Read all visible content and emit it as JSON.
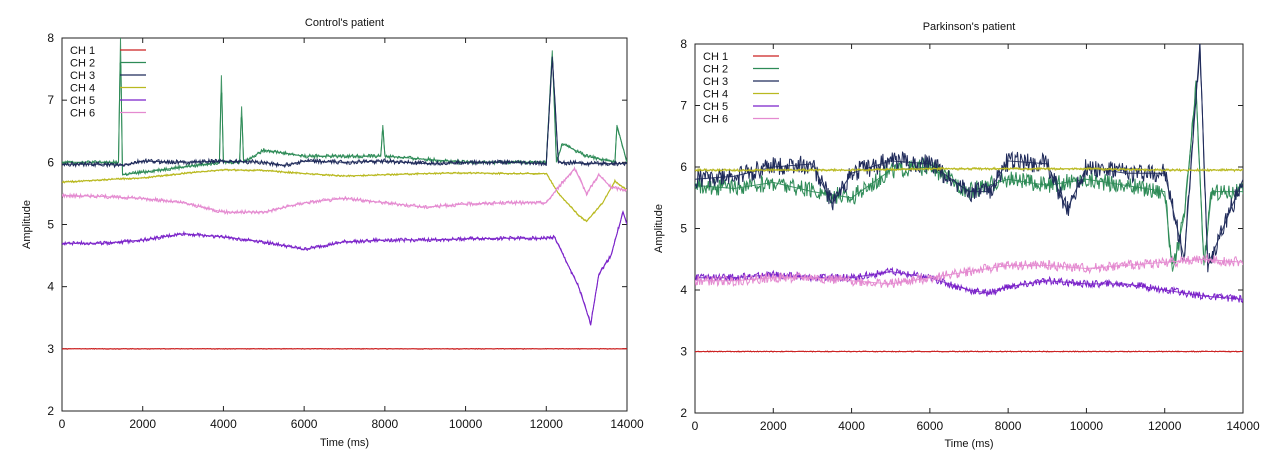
{
  "chart_data": [
    {
      "type": "line",
      "title": "Control's patient",
      "xlabel": "Time (ms)",
      "ylabel": "Amplitude",
      "xlim": [
        0,
        14000
      ],
      "ylim": [
        2,
        8
      ],
      "xticks": [
        0,
        2000,
        4000,
        6000,
        8000,
        10000,
        12000,
        14000
      ],
      "yticks": [
        2,
        3,
        4,
        5,
        6,
        7,
        8
      ],
      "grid": false,
      "legend": "top-left",
      "series": [
        {
          "name": "CH 1",
          "color": "#cc2222",
          "x": [
            0,
            2000,
            4000,
            6000,
            8000,
            10000,
            12000,
            14000
          ],
          "y": [
            3.0,
            3.0,
            3.0,
            3.0,
            3.0,
            3.0,
            3.0,
            3.0
          ]
        },
        {
          "name": "CH 2",
          "color": "#2e8b57",
          "x": [
            0,
            1400,
            1450,
            1500,
            3900,
            3950,
            4000,
            4400,
            4450,
            4500,
            5000,
            6000,
            7900,
            7950,
            8000,
            10000,
            12000,
            12150,
            12250,
            12400,
            13000,
            13700,
            13750,
            14000
          ],
          "y": [
            6.0,
            6.0,
            8.0,
            5.8,
            6.0,
            7.4,
            6.0,
            6.0,
            6.9,
            6.0,
            6.2,
            6.1,
            6.1,
            6.6,
            6.1,
            6.0,
            6.0,
            7.8,
            6.0,
            6.3,
            6.1,
            6.0,
            6.6,
            6.0
          ]
        },
        {
          "name": "CH 3",
          "color": "#1f2a5a",
          "x": [
            0,
            1000,
            1500,
            2000,
            3000,
            4000,
            5000,
            5500,
            6000,
            7000,
            8000,
            9000,
            10000,
            11000,
            12000,
            12150,
            12300,
            13000,
            14000
          ],
          "y": [
            5.97,
            5.97,
            5.95,
            6.02,
            6.0,
            6.02,
            6.0,
            5.95,
            6.02,
            6.0,
            6.02,
            5.98,
            6.0,
            6.0,
            5.98,
            7.7,
            6.0,
            5.98,
            5.98
          ]
        },
        {
          "name": "CH 4",
          "color": "#b9b920",
          "x": [
            0,
            1000,
            2000,
            3000,
            4000,
            5000,
            6000,
            7000,
            8000,
            9000,
            10000,
            11000,
            12000,
            12300,
            12800,
            13000,
            13400,
            13700,
            14000
          ],
          "y": [
            5.68,
            5.72,
            5.75,
            5.82,
            5.88,
            5.87,
            5.82,
            5.78,
            5.8,
            5.82,
            5.83,
            5.82,
            5.82,
            5.5,
            5.15,
            5.05,
            5.35,
            5.7,
            5.55
          ]
        },
        {
          "name": "CH 5",
          "color": "#7a22c9",
          "x": [
            0,
            1000,
            2000,
            3000,
            4000,
            5000,
            6000,
            7000,
            8000,
            9000,
            10000,
            11000,
            12000,
            12200,
            12500,
            12800,
            13100,
            13300,
            13600,
            13900,
            14000
          ],
          "y": [
            4.7,
            4.7,
            4.75,
            4.85,
            4.8,
            4.72,
            4.6,
            4.72,
            4.75,
            4.75,
            4.77,
            4.78,
            4.78,
            4.8,
            4.4,
            4.0,
            3.4,
            4.2,
            4.5,
            5.2,
            5.0
          ]
        },
        {
          "name": "CH 6",
          "color": "#e48ad0",
          "x": [
            0,
            1000,
            2000,
            3000,
            4000,
            5000,
            6000,
            7000,
            8000,
            9000,
            10000,
            11000,
            12000,
            12300,
            12700,
            13000,
            13300,
            13600,
            14000
          ],
          "y": [
            5.47,
            5.45,
            5.42,
            5.35,
            5.2,
            5.2,
            5.35,
            5.42,
            5.35,
            5.28,
            5.33,
            5.35,
            5.35,
            5.6,
            5.9,
            5.5,
            5.8,
            5.6,
            5.55
          ]
        }
      ]
    },
    {
      "type": "line",
      "title": "Parkinson's patient",
      "xlabel": "Time (ms)",
      "ylabel": "Amplitude",
      "xlim": [
        0,
        14000
      ],
      "ylim": [
        2,
        8
      ],
      "xticks": [
        0,
        2000,
        4000,
        6000,
        8000,
        10000,
        12000,
        14000
      ],
      "yticks": [
        2,
        3,
        4,
        5,
        6,
        7,
        8
      ],
      "grid": false,
      "legend": "top-left",
      "series": [
        {
          "name": "CH 1",
          "color": "#cc2222",
          "x": [
            0,
            2000,
            4000,
            6000,
            8000,
            10000,
            12000,
            14000
          ],
          "y": [
            3.0,
            3.0,
            3.0,
            3.0,
            3.0,
            3.0,
            3.0,
            3.0
          ]
        },
        {
          "name": "CH 2",
          "color": "#2e8b57",
          "x": [
            0,
            1000,
            2000,
            3000,
            4000,
            5000,
            6000,
            7000,
            8000,
            9000,
            10000,
            11000,
            12000,
            12200,
            12500,
            12800,
            13000,
            13200,
            14000
          ],
          "y": [
            5.7,
            5.65,
            5.75,
            5.6,
            5.5,
            5.95,
            6.0,
            5.6,
            5.8,
            5.7,
            5.8,
            5.7,
            5.6,
            4.3,
            5.2,
            7.3,
            4.4,
            5.6,
            5.6
          ]
        },
        {
          "name": "CH 3",
          "color": "#1f2a5a",
          "x": [
            0,
            1000,
            2000,
            3000,
            3500,
            4000,
            5000,
            6000,
            7000,
            7500,
            8000,
            9000,
            9500,
            10000,
            11000,
            12000,
            12500,
            12900,
            13100,
            14000
          ],
          "y": [
            5.8,
            5.85,
            6.0,
            6.05,
            5.4,
            5.9,
            6.1,
            6.05,
            5.6,
            5.6,
            6.1,
            6.05,
            5.3,
            6.0,
            5.9,
            5.9,
            4.5,
            8.0,
            4.4,
            5.8
          ]
        },
        {
          "name": "CH 4",
          "color": "#b9b920",
          "x": [
            0,
            2000,
            4000,
            6000,
            8000,
            10000,
            12000,
            14000
          ],
          "y": [
            5.95,
            5.95,
            5.95,
            5.97,
            5.97,
            5.97,
            5.95,
            5.95
          ]
        },
        {
          "name": "CH 5",
          "color": "#7a22c9",
          "x": [
            0,
            1000,
            2000,
            3000,
            4000,
            5000,
            6000,
            7000,
            7500,
            8000,
            9000,
            10000,
            11000,
            12000,
            13000,
            14000
          ],
          "y": [
            4.2,
            4.2,
            4.25,
            4.2,
            4.2,
            4.3,
            4.2,
            4.0,
            3.95,
            4.05,
            4.15,
            4.1,
            4.1,
            4.0,
            3.9,
            3.85
          ]
        },
        {
          "name": "CH 6",
          "color": "#e48ad0",
          "x": [
            0,
            1000,
            2000,
            3000,
            4000,
            5000,
            6000,
            7000,
            8000,
            9000,
            10000,
            11000,
            12000,
            13000,
            14000
          ],
          "y": [
            4.15,
            4.15,
            4.2,
            4.2,
            4.15,
            4.1,
            4.2,
            4.3,
            4.4,
            4.4,
            4.35,
            4.4,
            4.45,
            4.5,
            4.45
          ]
        }
      ]
    }
  ]
}
